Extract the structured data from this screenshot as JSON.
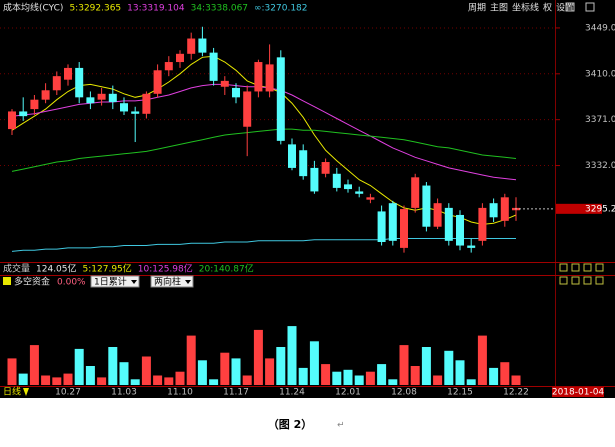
{
  "chart_data": [
    {
      "type": "candlestick",
      "title": "成本均线(CYC)",
      "categories": [
        null,
        null,
        null,
        null,
        null,
        "10.27",
        null,
        null,
        null,
        null,
        "11.03",
        null,
        null,
        null,
        null,
        "11.10",
        null,
        null,
        null,
        null,
        "11.17",
        null,
        null,
        null,
        null,
        "11.24",
        null,
        null,
        null,
        null,
        "12.01",
        null,
        null,
        null,
        null,
        "12.08",
        null,
        null,
        null,
        null,
        "12.15",
        null,
        null,
        null,
        null,
        "12.22"
      ],
      "open": [
        3363,
        3378,
        3380,
        3388,
        3396,
        3405,
        3415,
        3390,
        3388,
        3393,
        3385,
        3378,
        3376,
        3393,
        3413,
        3420,
        3427,
        3440,
        3428,
        3399,
        3398,
        3365,
        3395,
        3395,
        3424,
        3350,
        3345,
        3330,
        3325,
        3325,
        3316,
        3310,
        3303,
        3293,
        3300,
        3262,
        3296,
        3315,
        3280,
        3296,
        3290,
        3264,
        3268,
        3300,
        3285,
        3294
      ],
      "high": [
        3380,
        3390,
        3392,
        3402,
        3412,
        3418,
        3420,
        3395,
        3398,
        3400,
        3390,
        3382,
        3395,
        3418,
        3425,
        3430,
        3445,
        3450,
        3432,
        3408,
        3402,
        3400,
        3422,
        3435,
        3430,
        3355,
        3350,
        3336,
        3338,
        3330,
        3320,
        3314,
        3308,
        3298,
        3302,
        3298,
        3325,
        3318,
        3304,
        3300,
        3294,
        3270,
        3300,
        3304,
        3308,
        3305
      ],
      "low": [
        3358,
        3370,
        3375,
        3385,
        3392,
        3400,
        3385,
        3380,
        3383,
        3380,
        3375,
        3352,
        3372,
        3390,
        3408,
        3415,
        3422,
        3425,
        3400,
        3392,
        3385,
        3340,
        3390,
        3390,
        3350,
        3328,
        3320,
        3308,
        3322,
        3310,
        3309,
        3305,
        3300,
        3264,
        3264,
        3258,
        3292,
        3276,
        3278,
        3264,
        3260,
        3258,
        3264,
        3284,
        3280,
        3285
      ],
      "close": [
        3378,
        3374,
        3388,
        3396,
        3408,
        3415,
        3390,
        3385,
        3393,
        3386,
        3378,
        3376,
        3393,
        3413,
        3420,
        3427,
        3440,
        3428,
        3404,
        3404,
        3390,
        3395,
        3420,
        3418,
        3353,
        3330,
        3323,
        3310,
        3335,
        3313,
        3312,
        3308,
        3305,
        3267,
        3268,
        3295,
        3322,
        3280,
        3300,
        3268,
        3264,
        3262,
        3296,
        3288,
        3305,
        3296
      ],
      "up_color": "#ff4040",
      "down_color": "#54fcfc",
      "ylim": [
        3250,
        3460
      ],
      "yticks": [
        {
          "value": 3332,
          "label": "3332.0"
        },
        {
          "value": 3371,
          "label": "3371.0"
        },
        {
          "value": 3410,
          "label": "3410.0"
        },
        {
          "value": 3449,
          "label": "3449.0"
        }
      ],
      "grid": true,
      "current_price": {
        "value": 3295.2,
        "label": "3295.2"
      },
      "series": [
        {
          "name": "5:3292.365",
          "color": "#e8e800",
          "values": [
            3362,
            3368,
            3374,
            3380,
            3388,
            3395,
            3400,
            3401,
            3399,
            3397,
            3393,
            3390,
            3392,
            3397,
            3403,
            3410,
            3418,
            3424,
            3425,
            3420,
            3413,
            3404,
            3400,
            3398,
            3394,
            3385,
            3373,
            3358,
            3345,
            3336,
            3328,
            3320,
            3315,
            3308,
            3301,
            3296,
            3294,
            3296,
            3294,
            3290,
            3288,
            3284,
            3282,
            3283,
            3286,
            3290
          ]
        },
        {
          "name": "13:3319.104",
          "color": "#e040e0",
          "values": [
            3374,
            3375,
            3376,
            3378,
            3380,
            3382,
            3384,
            3385,
            3386,
            3386,
            3387,
            3387,
            3388,
            3390,
            3392,
            3395,
            3398,
            3400,
            3401,
            3401,
            3400,
            3399,
            3399,
            3398,
            3396,
            3392,
            3387,
            3382,
            3377,
            3372,
            3367,
            3362,
            3357,
            3352,
            3347,
            3343,
            3339,
            3336,
            3333,
            3330,
            3328,
            3326,
            3324,
            3322,
            3321,
            3320
          ]
        },
        {
          "name": "34:3338.067",
          "color": "#20c020",
          "values": [
            3327,
            3329,
            3331,
            3333,
            3335,
            3336,
            3338,
            3339,
            3340,
            3341,
            3342,
            3343,
            3344,
            3346,
            3348,
            3350,
            3352,
            3354,
            3356,
            3358,
            3359,
            3360,
            3361,
            3362,
            3363,
            3363,
            3362,
            3362,
            3361,
            3360,
            3359,
            3358,
            3357,
            3356,
            3355,
            3354,
            3352,
            3350,
            3348,
            3347,
            3345,
            3343,
            3341,
            3340,
            3339,
            3338
          ]
        },
        {
          "name": "∞:3270.182",
          "color": "#40c8e0",
          "values": [
            3259,
            3260,
            3260,
            3261,
            3261,
            3262,
            3262,
            3262,
            3263,
            3263,
            3264,
            3264,
            3264,
            3265,
            3265,
            3265,
            3266,
            3266,
            3266,
            3267,
            3267,
            3267,
            3268,
            3268,
            3268,
            3268,
            3268,
            3269,
            3269,
            3269,
            3269,
            3269,
            3269,
            3269,
            3270,
            3270,
            3270,
            3270,
            3270,
            3270,
            3270,
            3270,
            3270,
            3270,
            3270,
            3270
          ]
        }
      ]
    },
    {
      "type": "bar",
      "title": "多空资金",
      "subtitle": "0.00%",
      "values": [
        28,
        12,
        42,
        10,
        8,
        12,
        38,
        20,
        8,
        40,
        24,
        6,
        30,
        10,
        8,
        14,
        52,
        26,
        6,
        34,
        28,
        10,
        58,
        28,
        40,
        62,
        18,
        46,
        22,
        14,
        16,
        10,
        14,
        22,
        6,
        42,
        20,
        40,
        10,
        36,
        26,
        6,
        52,
        18,
        24,
        10
      ],
      "ylim": [
        0,
        100
      ]
    }
  ],
  "ui": {
    "toolbar": [
      "周期",
      "主图",
      "坐标线",
      "权",
      "设置"
    ],
    "volume_header": [
      {
        "text": "成交量",
        "color": "#d0d0d0"
      },
      {
        "text": "124.05亿",
        "color": "#e8e8e8"
      },
      {
        "text": "5:127.95亿",
        "color": "#e8e800"
      },
      {
        "text": "10:125.98亿",
        "color": "#e040e0"
      },
      {
        "text": "20:140.87亿",
        "color": "#20c020"
      }
    ],
    "dropdowns": [
      "1日累计",
      "两向柱"
    ],
    "period_label": "日线",
    "cursor_date": "2018-01-04",
    "caption": "（图 2）",
    "return_mark": "↵"
  }
}
